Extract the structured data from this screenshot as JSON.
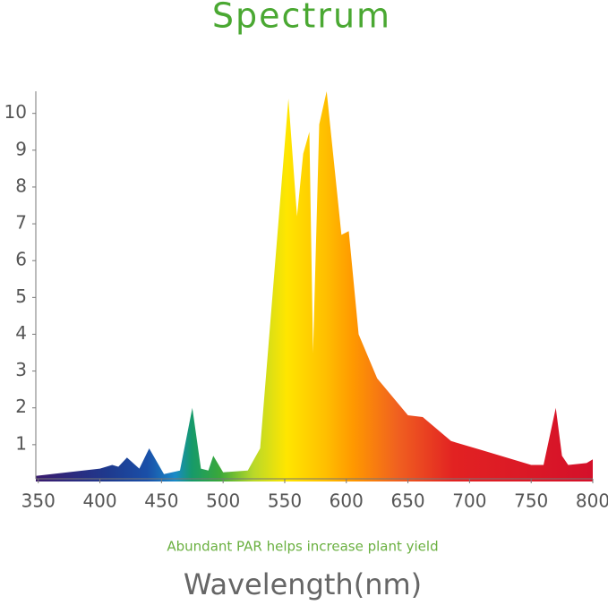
{
  "chart_data": {
    "type": "area",
    "title": "Spectrum",
    "subtitle": "Abundant PAR helps increase plant yield",
    "x_label": "Wavelength(nm)",
    "x": [
      348,
      400,
      410,
      415,
      422,
      432,
      440,
      452,
      465,
      475,
      482,
      488,
      492,
      500,
      520,
      530,
      553,
      560,
      565,
      570,
      573,
      578,
      584,
      592,
      596,
      602,
      610,
      625,
      650,
      662,
      685,
      710,
      750,
      760,
      770,
      775,
      780,
      795,
      800
    ],
    "values": [
      0.15,
      0.35,
      0.45,
      0.4,
      0.65,
      0.35,
      0.9,
      0.2,
      0.3,
      2.0,
      0.35,
      0.3,
      0.7,
      0.25,
      0.3,
      0.9,
      10.4,
      7.2,
      8.9,
      9.5,
      3.5,
      9.7,
      10.6,
      8.0,
      6.7,
      6.8,
      4.0,
      2.8,
      1.8,
      1.75,
      1.1,
      0.85,
      0.45,
      0.45,
      2.0,
      0.7,
      0.45,
      0.5,
      0.6
    ],
    "xlim": [
      348,
      800
    ],
    "ylim": [
      0,
      10.6
    ],
    "xticks": [
      350,
      400,
      450,
      500,
      550,
      600,
      650,
      700,
      750,
      800
    ],
    "yticks": [
      1,
      2,
      3,
      4,
      5,
      6,
      7,
      8,
      9,
      10
    ]
  }
}
